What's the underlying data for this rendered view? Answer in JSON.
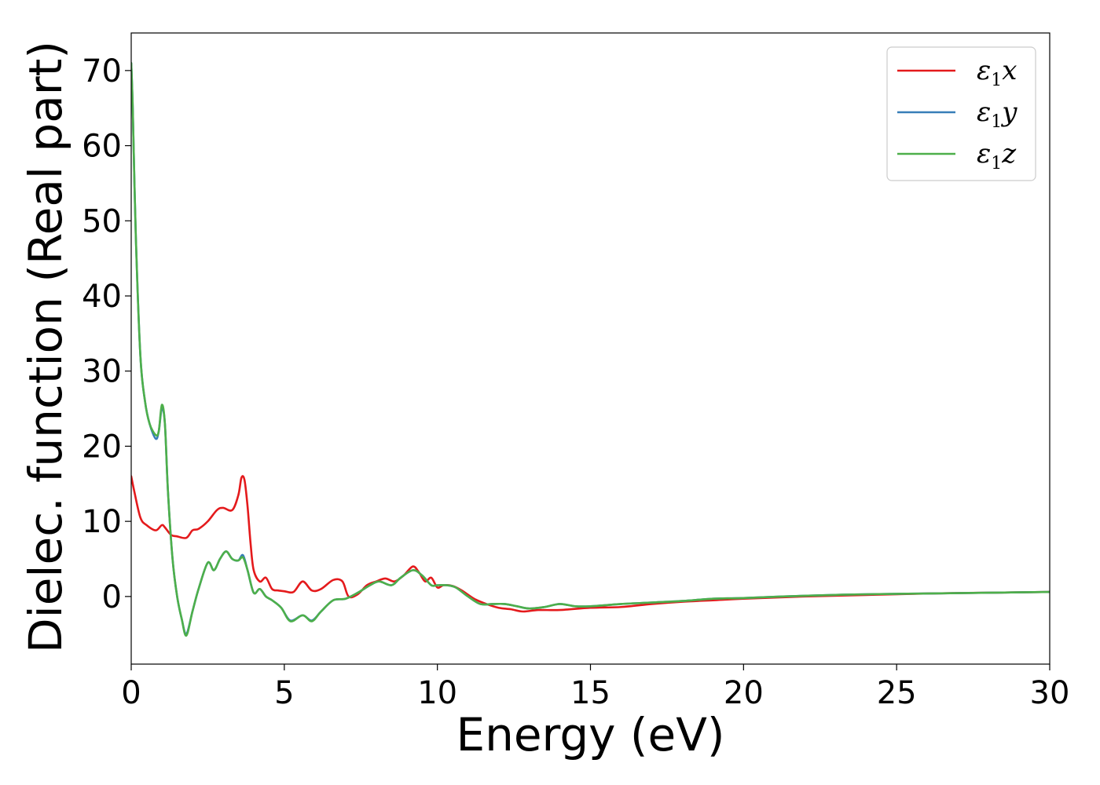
{
  "chart_data": {
    "type": "line",
    "title": "",
    "xlabel": "Energy (eV)",
    "ylabel": "Dielec. function (Real part)",
    "xlim": [
      0,
      30
    ],
    "ylim": [
      -9,
      75
    ],
    "xticks": [
      0,
      5,
      10,
      15,
      20,
      25,
      30
    ],
    "yticks": [
      0,
      10,
      20,
      30,
      40,
      50,
      60,
      70
    ],
    "grid": false,
    "legend": {
      "placement": "top-right"
    },
    "series": [
      {
        "name": "ε1x",
        "base": "ε",
        "sub": "1",
        "axis": "x",
        "color": "#e41a1c",
        "x": [
          0,
          0.1,
          0.3,
          0.5,
          0.8,
          1.0,
          1.1,
          1.3,
          1.5,
          1.8,
          2.0,
          2.2,
          2.5,
          2.8,
          3.0,
          3.3,
          3.5,
          3.6,
          3.7,
          3.8,
          3.9,
          4.0,
          4.2,
          4.4,
          4.6,
          4.8,
          5.0,
          5.3,
          5.6,
          5.9,
          6.2,
          6.6,
          6.9,
          7.1,
          7.4,
          7.7,
          8.0,
          8.3,
          8.6,
          8.9,
          9.2,
          9.4,
          9.6,
          9.8,
          10.0,
          10.2,
          10.5,
          10.8,
          11.2,
          11.6,
          12.0,
          12.4,
          12.8,
          13.3,
          14.0,
          15.0,
          16.0,
          17.0,
          18.0,
          19.0,
          20.0,
          22.0,
          24.0,
          26.0,
          28.0,
          30.0
        ],
        "y": [
          16,
          14,
          10.5,
          9.5,
          8.8,
          9.5,
          9.2,
          8.2,
          8.0,
          7.8,
          8.8,
          9.0,
          10.0,
          11.5,
          11.8,
          11.5,
          13.5,
          15.8,
          15.5,
          12.0,
          7.0,
          3.5,
          2.0,
          2.5,
          1.0,
          0.8,
          0.7,
          0.6,
          2.0,
          0.8,
          1.0,
          2.2,
          2.0,
          0.0,
          0.3,
          1.5,
          2.0,
          2.4,
          2.0,
          2.8,
          4.0,
          3.2,
          2.0,
          2.5,
          1.2,
          1.5,
          1.4,
          0.8,
          -0.3,
          -1.0,
          -1.5,
          -1.7,
          -2.0,
          -1.8,
          -1.8,
          -1.5,
          -1.4,
          -1.0,
          -0.7,
          -0.5,
          -0.3,
          0.0,
          0.2,
          0.4,
          0.5,
          0.6
        ]
      },
      {
        "name": "ε1y",
        "base": "ε",
        "sub": "1",
        "axis": "y",
        "color": "#377eb8",
        "x": [
          0,
          0.05,
          0.15,
          0.3,
          0.45,
          0.6,
          0.8,
          0.9,
          1.0,
          1.1,
          1.2,
          1.35,
          1.5,
          1.65,
          1.8,
          2.0,
          2.2,
          2.5,
          2.7,
          2.9,
          3.1,
          3.3,
          3.5,
          3.65,
          3.8,
          4.0,
          4.2,
          4.4,
          4.6,
          4.9,
          5.2,
          5.6,
          5.9,
          6.2,
          6.6,
          7.0,
          7.4,
          7.8,
          8.1,
          8.5,
          8.8,
          9.2,
          9.5,
          9.8,
          10.0,
          10.3,
          10.6,
          11.0,
          11.4,
          11.8,
          12.2,
          12.6,
          13.0,
          13.5,
          14.0,
          14.5,
          15.0,
          16.0,
          17.0,
          18.0,
          19.0,
          20.0,
          22.0,
          24.0,
          26.0,
          28.0,
          30.0
        ],
        "y": [
          71,
          65,
          48,
          32,
          26,
          23,
          21,
          22,
          25,
          23,
          14,
          5,
          0,
          -3,
          -5,
          -2,
          1,
          4.5,
          3.5,
          5.0,
          6.0,
          5.0,
          4.8,
          5.5,
          3.5,
          0.5,
          1.0,
          0.0,
          -0.5,
          -1.5,
          -3.2,
          -2.5,
          -3.2,
          -2.0,
          -0.5,
          -0.3,
          0.5,
          1.5,
          2.0,
          1.5,
          2.5,
          3.5,
          2.8,
          1.5,
          1.5,
          1.5,
          1.2,
          0.0,
          -1.0,
          -1.0,
          -1.0,
          -1.3,
          -1.6,
          -1.4,
          -1.0,
          -1.3,
          -1.3,
          -1.0,
          -0.8,
          -0.6,
          -0.3,
          -0.2,
          0.1,
          0.3,
          0.4,
          0.5,
          0.6
        ]
      },
      {
        "name": "ε1z",
        "base": "ε",
        "sub": "1",
        "axis": "z",
        "color": "#4daf4a",
        "x": [
          0,
          0.05,
          0.15,
          0.3,
          0.45,
          0.6,
          0.8,
          0.9,
          1.0,
          1.1,
          1.2,
          1.35,
          1.5,
          1.65,
          1.8,
          2.0,
          2.2,
          2.5,
          2.7,
          2.9,
          3.1,
          3.3,
          3.5,
          3.65,
          3.8,
          4.0,
          4.2,
          4.4,
          4.6,
          4.9,
          5.2,
          5.6,
          5.9,
          6.2,
          6.6,
          7.0,
          7.4,
          7.8,
          8.1,
          8.5,
          8.8,
          9.2,
          9.5,
          9.8,
          10.0,
          10.3,
          10.6,
          11.0,
          11.4,
          11.8,
          12.2,
          12.6,
          13.0,
          13.5,
          14.0,
          14.5,
          15.0,
          16.0,
          17.0,
          18.0,
          19.0,
          20.0,
          22.0,
          24.0,
          26.0,
          28.0,
          30.0
        ],
        "y": [
          71,
          65,
          48,
          32,
          26,
          23,
          21.5,
          22,
          25.5,
          23,
          14,
          5,
          0,
          -3,
          -5.2,
          -2,
          1,
          4.5,
          3.5,
          5.0,
          6.0,
          5.0,
          4.8,
          5.2,
          3.5,
          0.5,
          1.0,
          0.0,
          -0.5,
          -1.5,
          -3.3,
          -2.5,
          -3.3,
          -2.0,
          -0.5,
          -0.3,
          0.5,
          1.5,
          2.0,
          1.5,
          2.5,
          3.5,
          2.8,
          1.5,
          1.5,
          1.5,
          1.2,
          0.0,
          -1.0,
          -1.0,
          -1.0,
          -1.3,
          -1.6,
          -1.4,
          -1.0,
          -1.3,
          -1.3,
          -1.0,
          -0.8,
          -0.6,
          -0.3,
          -0.2,
          0.1,
          0.3,
          0.4,
          0.5,
          0.6
        ]
      }
    ]
  }
}
